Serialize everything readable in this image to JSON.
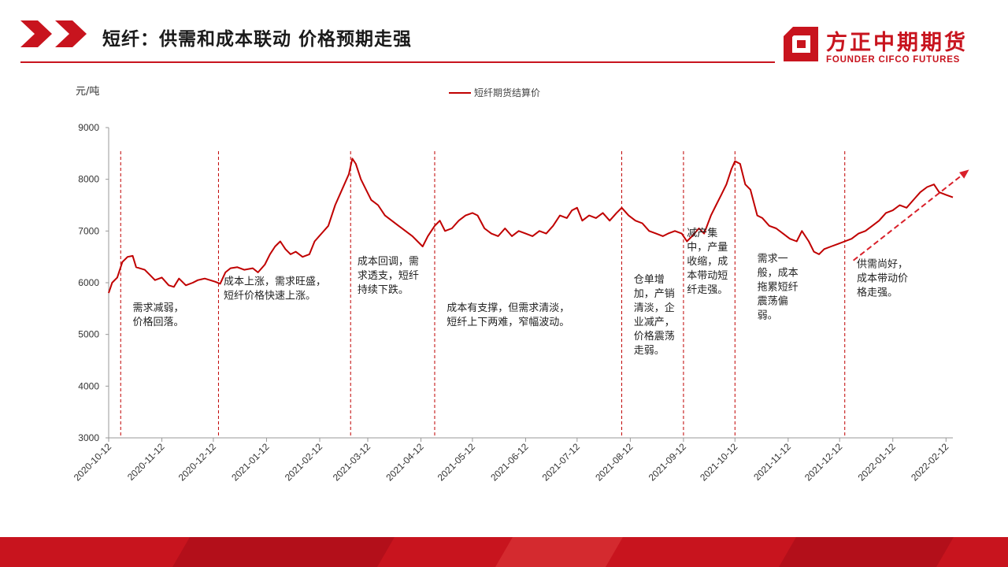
{
  "header": {
    "title": "短纤：供需和成本联动 价格预期走强",
    "logo_cn": "方正中期期货",
    "logo_en": "FOUNDER CIFCO FUTURES"
  },
  "colors": {
    "accent": "#c8141e",
    "series": "#c00000"
  },
  "chart_data": {
    "type": "line",
    "ylabel": "元/吨",
    "ylim": [
      3000,
      9000
    ],
    "yticks": [
      3000,
      4000,
      5000,
      6000,
      7000,
      8000,
      9000
    ],
    "xlim": [
      "2020-10-12",
      "2022-02-16"
    ],
    "xticks": [
      "2020-10-12",
      "2020-11-12",
      "2020-12-12",
      "2021-01-12",
      "2021-02-12",
      "2021-03-12",
      "2021-04-12",
      "2021-05-12",
      "2021-06-12",
      "2021-07-12",
      "2021-08-12",
      "2021-09-12",
      "2021-10-12",
      "2021-11-12",
      "2021-12-12",
      "2022-01-12",
      "2022-02-12"
    ],
    "grid": false,
    "legend_position": "top-center",
    "series": [
      {
        "name": "短纤期货结算价",
        "points": [
          [
            "2020-10-12",
            5800
          ],
          [
            "2020-10-14",
            6000
          ],
          [
            "2020-10-17",
            6100
          ],
          [
            "2020-10-20",
            6400
          ],
          [
            "2020-10-23",
            6500
          ],
          [
            "2020-10-26",
            6520
          ],
          [
            "2020-10-28",
            6300
          ],
          [
            "2020-11-02",
            6250
          ],
          [
            "2020-11-05",
            6150
          ],
          [
            "2020-11-08",
            6050
          ],
          [
            "2020-11-12",
            6100
          ],
          [
            "2020-11-16",
            5950
          ],
          [
            "2020-11-19",
            5920
          ],
          [
            "2020-11-22",
            6080
          ],
          [
            "2020-11-26",
            5950
          ],
          [
            "2020-11-30",
            6000
          ],
          [
            "2020-12-03",
            6050
          ],
          [
            "2020-12-07",
            6080
          ],
          [
            "2020-12-10",
            6050
          ],
          [
            "2020-12-13",
            6020
          ],
          [
            "2020-12-16",
            5980
          ],
          [
            "2020-12-19",
            6200
          ],
          [
            "2020-12-22",
            6280
          ],
          [
            "2020-12-26",
            6300
          ],
          [
            "2020-12-30",
            6250
          ],
          [
            "2021-01-04",
            6280
          ],
          [
            "2021-01-07",
            6200
          ],
          [
            "2021-01-11",
            6350
          ],
          [
            "2021-01-14",
            6550
          ],
          [
            "2021-01-17",
            6700
          ],
          [
            "2021-01-20",
            6800
          ],
          [
            "2021-01-23",
            6650
          ],
          [
            "2021-01-26",
            6550
          ],
          [
            "2021-01-29",
            6600
          ],
          [
            "2021-02-02",
            6500
          ],
          [
            "2021-02-06",
            6550
          ],
          [
            "2021-02-09",
            6800
          ],
          [
            "2021-02-13",
            6950
          ],
          [
            "2021-02-17",
            7100
          ],
          [
            "2021-02-21",
            7500
          ],
          [
            "2021-02-25",
            7800
          ],
          [
            "2021-03-01",
            8100
          ],
          [
            "2021-03-03",
            8400
          ],
          [
            "2021-03-05",
            8300
          ],
          [
            "2021-03-08",
            8000
          ],
          [
            "2021-03-11",
            7800
          ],
          [
            "2021-03-14",
            7600
          ],
          [
            "2021-03-18",
            7500
          ],
          [
            "2021-03-22",
            7300
          ],
          [
            "2021-03-26",
            7200
          ],
          [
            "2021-03-30",
            7100
          ],
          [
            "2021-04-03",
            7000
          ],
          [
            "2021-04-07",
            6900
          ],
          [
            "2021-04-10",
            6800
          ],
          [
            "2021-04-13",
            6700
          ],
          [
            "2021-04-16",
            6900
          ],
          [
            "2021-04-20",
            7100
          ],
          [
            "2021-04-23",
            7200
          ],
          [
            "2021-04-26",
            7000
          ],
          [
            "2021-04-30",
            7050
          ],
          [
            "2021-05-04",
            7200
          ],
          [
            "2021-05-08",
            7300
          ],
          [
            "2021-05-12",
            7350
          ],
          [
            "2021-05-15",
            7300
          ],
          [
            "2021-05-19",
            7050
          ],
          [
            "2021-05-23",
            6950
          ],
          [
            "2021-05-27",
            6900
          ],
          [
            "2021-05-31",
            7050
          ],
          [
            "2021-06-04",
            6900
          ],
          [
            "2021-06-08",
            7000
          ],
          [
            "2021-06-12",
            6950
          ],
          [
            "2021-06-16",
            6900
          ],
          [
            "2021-06-20",
            7000
          ],
          [
            "2021-06-24",
            6950
          ],
          [
            "2021-06-28",
            7100
          ],
          [
            "2021-07-02",
            7300
          ],
          [
            "2021-07-06",
            7250
          ],
          [
            "2021-07-09",
            7400
          ],
          [
            "2021-07-12",
            7450
          ],
          [
            "2021-07-15",
            7200
          ],
          [
            "2021-07-19",
            7300
          ],
          [
            "2021-07-23",
            7250
          ],
          [
            "2021-07-27",
            7350
          ],
          [
            "2021-07-31",
            7200
          ],
          [
            "2021-08-04",
            7350
          ],
          [
            "2021-08-07",
            7450
          ],
          [
            "2021-08-11",
            7300
          ],
          [
            "2021-08-15",
            7200
          ],
          [
            "2021-08-19",
            7150
          ],
          [
            "2021-08-23",
            7000
          ],
          [
            "2021-08-27",
            6950
          ],
          [
            "2021-08-31",
            6900
          ],
          [
            "2021-09-03",
            6950
          ],
          [
            "2021-09-07",
            7000
          ],
          [
            "2021-09-11",
            6950
          ],
          [
            "2021-09-14",
            6800
          ],
          [
            "2021-09-17",
            6900
          ],
          [
            "2021-09-21",
            7050
          ],
          [
            "2021-09-24",
            6950
          ],
          [
            "2021-09-28",
            7300
          ],
          [
            "2021-10-01",
            7500
          ],
          [
            "2021-10-04",
            7700
          ],
          [
            "2021-10-07",
            7900
          ],
          [
            "2021-10-10",
            8200
          ],
          [
            "2021-10-12",
            8350
          ],
          [
            "2021-10-15",
            8300
          ],
          [
            "2021-10-18",
            7900
          ],
          [
            "2021-10-21",
            7800
          ],
          [
            "2021-10-25",
            7300
          ],
          [
            "2021-10-28",
            7250
          ],
          [
            "2021-11-01",
            7100
          ],
          [
            "2021-11-05",
            7050
          ],
          [
            "2021-11-09",
            6950
          ],
          [
            "2021-11-13",
            6850
          ],
          [
            "2021-11-17",
            6800
          ],
          [
            "2021-11-20",
            7000
          ],
          [
            "2021-11-24",
            6800
          ],
          [
            "2021-11-27",
            6600
          ],
          [
            "2021-11-30",
            6550
          ],
          [
            "2021-12-03",
            6650
          ],
          [
            "2021-12-07",
            6700
          ],
          [
            "2021-12-11",
            6750
          ],
          [
            "2021-12-15",
            6800
          ],
          [
            "2021-12-19",
            6850
          ],
          [
            "2021-12-23",
            6950
          ],
          [
            "2021-12-27",
            7000
          ],
          [
            "2021-12-31",
            7100
          ],
          [
            "2022-01-04",
            7200
          ],
          [
            "2022-01-08",
            7350
          ],
          [
            "2022-01-12",
            7400
          ],
          [
            "2022-01-16",
            7500
          ],
          [
            "2022-01-20",
            7450
          ],
          [
            "2022-01-24",
            7600
          ],
          [
            "2022-01-28",
            7750
          ],
          [
            "2022-02-01",
            7850
          ],
          [
            "2022-02-05",
            7900
          ],
          [
            "2022-02-08",
            7750
          ],
          [
            "2022-02-12",
            7700
          ],
          [
            "2022-02-16",
            7650
          ]
        ]
      }
    ],
    "dividers": [
      "2020-10-19",
      "2020-12-15",
      "2021-03-02",
      "2021-04-20",
      "2021-08-07",
      "2021-09-12",
      "2021-10-12",
      "2021-12-15"
    ],
    "trend_arrow": {
      "from": [
        "2021-12-20",
        6430
      ],
      "to": [
        "2022-02-24",
        8150
      ]
    },
    "annotations": [
      {
        "lines": [
          "需求减弱，",
          "价格回落。"
        ],
        "x": "2020-10-26",
        "y": 5450
      },
      {
        "lines": [
          "成本上涨，需求旺盛，",
          "短纤价格快速上涨。"
        ],
        "x": "2020-12-18",
        "y": 5960
      },
      {
        "lines": [
          "成本回调，需",
          "求透支，短纤",
          "持续下跌。"
        ],
        "x": "2021-03-06",
        "y": 6350
      },
      {
        "lines": [
          "成本有支撑，但需求清淡，",
          "短纤上下两难，窄幅波动。"
        ],
        "x": "2021-04-27",
        "y": 5450
      },
      {
        "lines": [
          "仓单增",
          "加，产销",
          "清淡，企",
          "业减产，",
          "价格震荡",
          "走弱。"
        ],
        "x": "2021-08-14",
        "y": 6000
      },
      {
        "lines": [
          "减产集",
          "中，产量",
          "收缩，成",
          "本带动短",
          "纤走强。"
        ],
        "x": "2021-09-14",
        "y": 6900
      },
      {
        "lines": [
          "需求一",
          "般，成本",
          "拖累短纤",
          "震荡偏",
          "弱。"
        ],
        "x": "2021-10-25",
        "y": 6400
      },
      {
        "lines": [
          "供需尚好，",
          "成本带动价",
          "格走强。"
        ],
        "x": "2021-12-22",
        "y": 6300
      }
    ]
  }
}
